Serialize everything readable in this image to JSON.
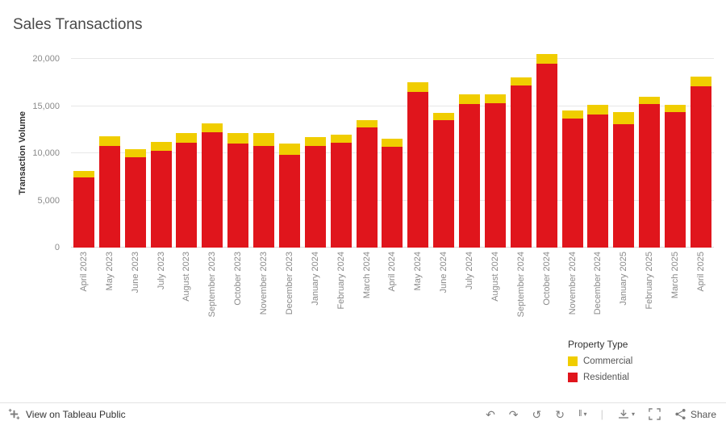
{
  "title": "Sales Transactions",
  "chart_data": {
    "type": "bar",
    "stacked": true,
    "title": "Sales Transactions",
    "ylabel": "Transaction Volume",
    "xlabel": "",
    "ylim": [
      0,
      20000
    ],
    "yticks": [
      0,
      5000,
      10000,
      15000,
      20000
    ],
    "ytick_labels": [
      "0",
      "5,000",
      "10,000",
      "15,000",
      "20,000"
    ],
    "legend_position": "bottom-right",
    "grid": true,
    "categories": [
      "April 2023",
      "May 2023",
      "June 2023",
      "July 2023",
      "August 2023",
      "September 2023",
      "October 2023",
      "November 2023",
      "December 2023",
      "January 2024",
      "February 2024",
      "March 2024",
      "April 2024",
      "May 2024",
      "June 2024",
      "July 2024",
      "August 2024",
      "September 2024",
      "October 2024",
      "November 2024",
      "December 2024",
      "January 2025",
      "February 2025",
      "March 2025",
      "April 2025"
    ],
    "series": [
      {
        "name": "Residential",
        "color": "#e0151c",
        "values": [
          7400,
          10800,
          9600,
          10300,
          11100,
          12200,
          11000,
          10800,
          9800,
          10800,
          11100,
          12700,
          10700,
          16500,
          13500,
          15200,
          15300,
          17200,
          19500,
          13700,
          14100,
          13100,
          15200,
          14400,
          17100
        ]
      },
      {
        "name": "Commercial",
        "color": "#f0cd00",
        "values": [
          700,
          1000,
          800,
          900,
          1000,
          1000,
          1100,
          1300,
          1200,
          900,
          900,
          800,
          800,
          1000,
          800,
          1000,
          900,
          800,
          1000,
          800,
          1000,
          1300,
          800,
          700,
          1000
        ]
      }
    ]
  },
  "legend": {
    "title": "Property Type",
    "items": [
      {
        "label": "Commercial",
        "color": "#f0cd00"
      },
      {
        "label": "Residential",
        "color": "#e0151c"
      }
    ]
  },
  "toolbar": {
    "view_label": "View on Tableau Public",
    "share_label": "Share",
    "icons": {
      "undo": "↶",
      "redo": "↷",
      "reset": "↺",
      "refresh": "↻",
      "pause": "‖",
      "caret": "▾",
      "separator": "|"
    }
  }
}
